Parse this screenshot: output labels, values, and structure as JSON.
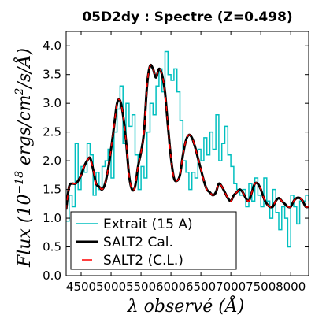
{
  "chart_data": {
    "type": "line",
    "title": "05D2dy : Spectre (Z=0.498)",
    "xlabel": "λ observé (Å)",
    "ylabel": "Flux (10^-18 ergs/cm²/s/Å)",
    "ylabel_parts": {
      "base": "Flux (10",
      "exp": "−18",
      "units": " ergs/cm",
      "sq": "2",
      "tail": "/s/Å)"
    },
    "xlim": [
      4250,
      8300
    ],
    "ylim": [
      0.0,
      4.25
    ],
    "xticks": [
      4500,
      5000,
      5500,
      6000,
      6500,
      7000,
      7500,
      8000
    ],
    "xtick_labels": [
      "4500",
      "5000",
      "5500",
      "6000",
      "6500",
      "7000",
      "7500",
      "8000"
    ],
    "yticks": [
      0.0,
      0.5,
      1.0,
      1.5,
      2.0,
      2.5,
      3.0,
      3.5,
      4.0
    ],
    "ytick_labels": [
      "0.0",
      "0.5",
      "1.0",
      "1.5",
      "2.0",
      "2.5",
      "3.0",
      "3.5",
      "4.0"
    ],
    "legend_position": "bottom-left",
    "series": [
      {
        "name": "Extrait (15 A)",
        "color": "#00bfbf",
        "style": "step",
        "x": [
          4250,
          4300,
          4350,
          4400,
          4450,
          4500,
          4550,
          4600,
          4650,
          4700,
          4750,
          4800,
          4850,
          4900,
          4950,
          5000,
          5050,
          5100,
          5150,
          5200,
          5250,
          5300,
          5350,
          5400,
          5450,
          5500,
          5550,
          5600,
          5650,
          5700,
          5750,
          5800,
          5850,
          5900,
          5950,
          6000,
          6050,
          6100,
          6150,
          6200,
          6250,
          6300,
          6350,
          6400,
          6450,
          6500,
          6550,
          6600,
          6650,
          6700,
          6750,
          6800,
          6850,
          6900,
          6950,
          7000,
          7050,
          7100,
          7150,
          7200,
          7250,
          7300,
          7350,
          7400,
          7450,
          7500,
          7550,
          7600,
          7650,
          7700,
          7750,
          7800,
          7850,
          7900,
          7950,
          8000,
          8050,
          8100,
          8150,
          8200,
          8250,
          8300
        ],
        "y": [
          0.95,
          1.4,
          1.2,
          2.3,
          1.5,
          1.9,
          1.8,
          2.3,
          2.1,
          1.4,
          1.8,
          1.5,
          1.9,
          2.0,
          2.2,
          1.7,
          2.5,
          2.9,
          3.3,
          2.3,
          3.0,
          2.6,
          2.8,
          2.1,
          1.5,
          1.9,
          1.7,
          2.5,
          3.0,
          2.8,
          3.3,
          3.6,
          3.2,
          3.9,
          3.5,
          3.4,
          3.6,
          3.2,
          2.7,
          2.0,
          1.8,
          1.5,
          1.8,
          1.7,
          2.2,
          2.0,
          2.4,
          2.1,
          2.5,
          2.2,
          2.8,
          2.0,
          2.3,
          2.6,
          2.1,
          1.9,
          1.6,
          1.5,
          1.4,
          1.5,
          1.2,
          1.6,
          1.3,
          1.7,
          1.4,
          1.2,
          1.7,
          1.3,
          1.0,
          1.5,
          1.1,
          0.8,
          1.2,
          1.0,
          0.5,
          1.4,
          1.2,
          0.9,
          1.3,
          1.3,
          1.4,
          1.3
        ]
      },
      {
        "name": "SALT2 Cal.",
        "color": "#000000",
        "style": "solid",
        "x": [
          4250,
          4300,
          4350,
          4400,
          4450,
          4500,
          4550,
          4600,
          4650,
          4700,
          4750,
          4800,
          4850,
          4900,
          4950,
          5000,
          5050,
          5100,
          5150,
          5200,
          5250,
          5300,
          5350,
          5400,
          5450,
          5500,
          5550,
          5600,
          5650,
          5700,
          5750,
          5800,
          5850,
          5900,
          5950,
          6000,
          6050,
          6100,
          6150,
          6200,
          6250,
          6300,
          6350,
          6400,
          6450,
          6500,
          6550,
          6600,
          6650,
          6700,
          6750,
          6800,
          6850,
          6900,
          6950,
          7000,
          7050,
          7100,
          7150,
          7200,
          7250,
          7300,
          7350,
          7400,
          7450,
          7500,
          7550,
          7600,
          7650,
          7700,
          7750,
          7800,
          7850,
          7900,
          7950,
          8000,
          8050,
          8100,
          8150,
          8200,
          8250,
          8300
        ],
        "y": [
          1.15,
          1.55,
          1.6,
          1.6,
          1.65,
          1.75,
          1.9,
          2.0,
          2.05,
          1.85,
          1.6,
          1.55,
          1.5,
          1.6,
          1.85,
          2.2,
          2.6,
          3.0,
          3.05,
          2.8,
          2.35,
          1.75,
          1.5,
          1.55,
          1.9,
          2.15,
          2.5,
          3.3,
          3.65,
          3.6,
          3.45,
          3.6,
          3.5,
          3.2,
          2.6,
          2.05,
          1.7,
          1.65,
          1.75,
          2.1,
          2.35,
          2.45,
          2.4,
          2.25,
          2.05,
          1.85,
          1.65,
          1.5,
          1.45,
          1.4,
          1.45,
          1.6,
          1.55,
          1.45,
          1.35,
          1.3,
          1.4,
          1.45,
          1.5,
          1.45,
          1.35,
          1.3,
          1.45,
          1.6,
          1.6,
          1.5,
          1.35,
          1.25,
          1.2,
          1.2,
          1.3,
          1.35,
          1.3,
          1.25,
          1.2,
          1.2,
          1.3,
          1.35,
          1.35,
          1.3,
          1.2,
          1.2
        ]
      },
      {
        "name": "SALT2 (C.L.)",
        "color": "#ff0000",
        "style": "dashed",
        "x": [
          4250,
          4300,
          4350,
          4400,
          4450,
          4500,
          4550,
          4600,
          4650,
          4700,
          4750,
          4800,
          4850,
          4900,
          4950,
          5000,
          5050,
          5100,
          5150,
          5200,
          5250,
          5300,
          5350,
          5400,
          5450,
          5500,
          5550,
          5600,
          5650,
          5700,
          5750,
          5800,
          5850,
          5900,
          5950,
          6000,
          6050,
          6100,
          6150,
          6200,
          6250,
          6300,
          6350,
          6400,
          6450,
          6500,
          6550,
          6600,
          6650,
          6700,
          6750,
          6800,
          6850,
          6900,
          6950,
          7000,
          7050,
          7100,
          7150,
          7200,
          7250,
          7300,
          7350,
          7400,
          7450,
          7500,
          7550,
          7600,
          7650,
          7700,
          7750,
          7800,
          7850,
          7900,
          7950,
          8000,
          8050,
          8100,
          8150,
          8200,
          8250,
          8300
        ],
        "y": [
          1.15,
          1.55,
          1.6,
          1.6,
          1.65,
          1.75,
          1.9,
          2.0,
          2.05,
          1.85,
          1.6,
          1.55,
          1.5,
          1.6,
          1.85,
          2.2,
          2.6,
          3.0,
          3.05,
          2.8,
          2.35,
          1.75,
          1.5,
          1.55,
          1.9,
          2.15,
          2.5,
          3.3,
          3.65,
          3.6,
          3.45,
          3.6,
          3.5,
          3.2,
          2.6,
          2.05,
          1.7,
          1.65,
          1.75,
          2.1,
          2.35,
          2.45,
          2.4,
          2.25,
          2.05,
          1.85,
          1.65,
          1.5,
          1.45,
          1.4,
          1.45,
          1.6,
          1.55,
          1.45,
          1.35,
          1.3,
          1.4,
          1.45,
          1.5,
          1.45,
          1.35,
          1.3,
          1.45,
          1.6,
          1.6,
          1.5,
          1.35,
          1.25,
          1.2,
          1.2,
          1.3,
          1.35,
          1.3,
          1.25,
          1.2,
          1.2,
          1.3,
          1.35,
          1.35,
          1.3,
          1.2,
          1.2
        ]
      }
    ]
  }
}
